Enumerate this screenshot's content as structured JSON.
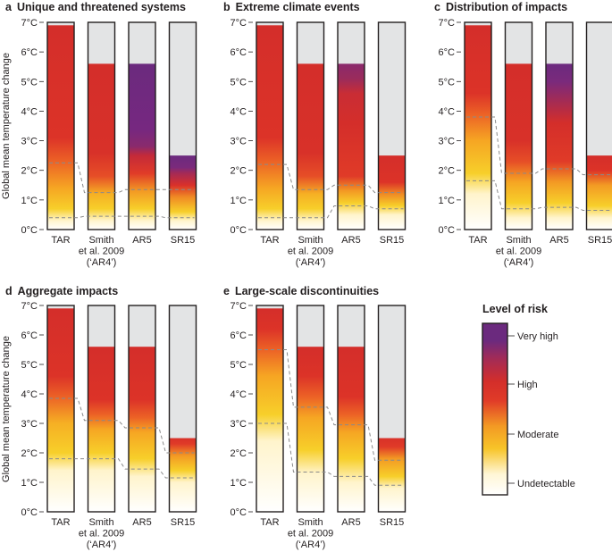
{
  "chart_data": {
    "type": "bar",
    "ylabel": "Global mean temperature change",
    "ylim": [
      0,
      7
    ],
    "y_ticks": [
      "0°C",
      "1°C",
      "2°C",
      "3°C",
      "4°C",
      "5°C",
      "6°C",
      "7°C"
    ],
    "categories": [
      {
        "id": "TAR",
        "lines": [
          "TAR"
        ]
      },
      {
        "id": "Smith et al. 2009 ('AR4')",
        "lines": [
          "Smith",
          "et al. 2009",
          "(‘AR4’)"
        ]
      },
      {
        "id": "AR5",
        "lines": [
          "AR5"
        ]
      },
      {
        "id": "SR15",
        "lines": [
          "SR15"
        ]
      }
    ],
    "legend": {
      "title": "Level of risk",
      "levels": [
        "Very high",
        "High",
        "Moderate",
        "Undetectable"
      ],
      "colors": [
        "#6b2a7e",
        "#d9302a",
        "#f7c428",
        "#ffffff"
      ]
    },
    "panels": [
      {
        "letter": "a",
        "title": "Unique and threatened systems",
        "bars": [
          {
            "top": 6.9,
            "stops": [
              [
                0,
                "#ffffff"
              ],
              [
                0.3,
                "#fff4cc"
              ],
              [
                0.7,
                "#f7cf2a"
              ],
              [
                1.4,
                "#f6a623"
              ],
              [
                2.3,
                "#ec6226"
              ],
              [
                3.1,
                "#dc3328"
              ],
              [
                6.9,
                "#d42e2a"
              ]
            ]
          },
          {
            "top": 5.6,
            "stops": [
              [
                0,
                "#ffffff"
              ],
              [
                0.3,
                "#fff4cc"
              ],
              [
                0.7,
                "#f7cf2a"
              ],
              [
                1.2,
                "#f6b024"
              ],
              [
                1.8,
                "#e64e27"
              ],
              [
                2.6,
                "#d83129"
              ],
              [
                5.6,
                "#d42e2a"
              ]
            ]
          },
          {
            "top": 5.6,
            "stops": [
              [
                0,
                "#ffffff"
              ],
              [
                0.3,
                "#fff4cc"
              ],
              [
                0.7,
                "#f7cf2a"
              ],
              [
                1.3,
                "#f39a24"
              ],
              [
                1.9,
                "#e03b28"
              ],
              [
                2.5,
                "#c42a39"
              ],
              [
                2.8,
                "#8a2a6c"
              ],
              [
                3.4,
                "#762880"
              ],
              [
                5.6,
                "#6b2a7e"
              ]
            ]
          },
          {
            "top": 2.5,
            "stops": [
              [
                0,
                "#ffffff"
              ],
              [
                0.3,
                "#fff4cc"
              ],
              [
                0.6,
                "#f7cf2a"
              ],
              [
                1.1,
                "#f08a24"
              ],
              [
                1.5,
                "#d9302a"
              ],
              [
                1.9,
                "#a52a55"
              ],
              [
                2.1,
                "#7a2a7c"
              ],
              [
                2.5,
                "#6b2a7e"
              ]
            ]
          }
        ],
        "lines": [
          {
            "values": [
              2.25,
              1.25,
              1.35,
              1.35
            ]
          },
          {
            "values": [
              0.4,
              0.45,
              0.45,
              0.4
            ]
          }
        ]
      },
      {
        "letter": "b",
        "title": "Extreme climate events",
        "bars": [
          {
            "top": 6.9,
            "stops": [
              [
                0,
                "#ffffff"
              ],
              [
                0.3,
                "#fff4cc"
              ],
              [
                0.7,
                "#f7cf2a"
              ],
              [
                1.4,
                "#f6a623"
              ],
              [
                2.3,
                "#ec6226"
              ],
              [
                3.1,
                "#dc3328"
              ],
              [
                6.9,
                "#d42e2a"
              ]
            ]
          },
          {
            "top": 5.6,
            "stops": [
              [
                0,
                "#ffffff"
              ],
              [
                0.3,
                "#fff4cc"
              ],
              [
                0.7,
                "#f7cf2a"
              ],
              [
                1.2,
                "#f6b024"
              ],
              [
                1.8,
                "#e64e27"
              ],
              [
                2.6,
                "#d83129"
              ],
              [
                5.6,
                "#d42e2a"
              ]
            ]
          },
          {
            "top": 5.6,
            "stops": [
              [
                0,
                "#ffffff"
              ],
              [
                0.5,
                "#fff4cc"
              ],
              [
                0.9,
                "#f7cf2a"
              ],
              [
                1.3,
                "#f39a24"
              ],
              [
                1.8,
                "#e03b28"
              ],
              [
                3.6,
                "#d42e2a"
              ],
              [
                4.6,
                "#c92d35"
              ],
              [
                5.1,
                "#9a2b5c"
              ],
              [
                5.6,
                "#8a2a6c"
              ]
            ]
          },
          {
            "top": 2.5,
            "stops": [
              [
                0,
                "#ffffff"
              ],
              [
                0.5,
                "#fff4cc"
              ],
              [
                0.8,
                "#f7cf2a"
              ],
              [
                1.2,
                "#f08a24"
              ],
              [
                1.6,
                "#dc3328"
              ],
              [
                2.5,
                "#d42e2a"
              ]
            ]
          }
        ],
        "lines": [
          {
            "values": [
              2.2,
              1.35,
              1.5,
              1.25
            ]
          },
          {
            "values": [
              0.4,
              0.4,
              0.8,
              0.7
            ]
          }
        ]
      },
      {
        "letter": "c",
        "title": "Distribution of impacts",
        "bars": [
          {
            "top": 6.9,
            "stops": [
              [
                0,
                "#ffffff"
              ],
              [
                1.2,
                "#fff4cc"
              ],
              [
                1.9,
                "#f7cf2a"
              ],
              [
                3.0,
                "#f6a623"
              ],
              [
                3.9,
                "#ec6226"
              ],
              [
                4.6,
                "#dc3328"
              ],
              [
                6.9,
                "#d42e2a"
              ]
            ]
          },
          {
            "top": 5.6,
            "stops": [
              [
                0,
                "#ffffff"
              ],
              [
                0.4,
                "#fff4cc"
              ],
              [
                0.9,
                "#f7cf2a"
              ],
              [
                1.6,
                "#f6a623"
              ],
              [
                2.3,
                "#e64e27"
              ],
              [
                3.0,
                "#d83129"
              ],
              [
                5.6,
                "#d42e2a"
              ]
            ]
          },
          {
            "top": 5.6,
            "stops": [
              [
                0,
                "#ffffff"
              ],
              [
                0.4,
                "#fff4cc"
              ],
              [
                0.9,
                "#f7cf2a"
              ],
              [
                1.6,
                "#f39a24"
              ],
              [
                2.3,
                "#e03b28"
              ],
              [
                3.6,
                "#d42e2a"
              ],
              [
                4.4,
                "#a02b58"
              ],
              [
                5.0,
                "#7a2a7c"
              ],
              [
                5.6,
                "#6b2a7e"
              ]
            ]
          },
          {
            "top": 2.5,
            "stops": [
              [
                0,
                "#ffffff"
              ],
              [
                0.4,
                "#fff4cc"
              ],
              [
                0.8,
                "#f7cf2a"
              ],
              [
                1.5,
                "#f39a24"
              ],
              [
                2.0,
                "#dc3328"
              ],
              [
                2.5,
                "#d42e2a"
              ]
            ]
          }
        ],
        "lines": [
          {
            "values": [
              3.8,
              1.9,
              2.05,
              1.85
            ]
          },
          {
            "values": [
              1.65,
              0.7,
              0.75,
              0.65
            ]
          }
        ]
      },
      {
        "letter": "d",
        "title": "Aggregate impacts",
        "bars": [
          {
            "top": 6.9,
            "stops": [
              [
                0,
                "#ffffff"
              ],
              [
                1.4,
                "#fff4cc"
              ],
              [
                2.0,
                "#f7cf2a"
              ],
              [
                3.0,
                "#f6b024"
              ],
              [
                3.9,
                "#ec6226"
              ],
              [
                4.6,
                "#dc3328"
              ],
              [
                6.9,
                "#d42e2a"
              ]
            ]
          },
          {
            "top": 5.6,
            "stops": [
              [
                0,
                "#ffffff"
              ],
              [
                1.4,
                "#fff4cc"
              ],
              [
                2.0,
                "#f7cf2a"
              ],
              [
                2.8,
                "#f6a623"
              ],
              [
                3.3,
                "#ec6226"
              ],
              [
                3.8,
                "#dc3328"
              ],
              [
                5.6,
                "#d42e2a"
              ]
            ]
          },
          {
            "top": 5.6,
            "stops": [
              [
                0,
                "#ffffff"
              ],
              [
                1.2,
                "#fff4cc"
              ],
              [
                1.8,
                "#f7cf2a"
              ],
              [
                2.7,
                "#f6a623"
              ],
              [
                3.2,
                "#ec6226"
              ],
              [
                3.8,
                "#dc3328"
              ],
              [
                5.6,
                "#d42e2a"
              ]
            ]
          },
          {
            "top": 2.5,
            "stops": [
              [
                0,
                "#ffffff"
              ],
              [
                1.0,
                "#fff4cc"
              ],
              [
                1.4,
                "#f7cf2a"
              ],
              [
                1.9,
                "#f39a24"
              ],
              [
                2.3,
                "#e03b28"
              ],
              [
                2.5,
                "#d83129"
              ]
            ]
          }
        ],
        "lines": [
          {
            "values": [
              3.85,
              3.1,
              2.85,
              2.0
            ]
          },
          {
            "values": [
              1.8,
              1.8,
              1.45,
              1.15
            ]
          }
        ]
      },
      {
        "letter": "e",
        "title": "Large-scale discontinuities",
        "bars": [
          {
            "top": 6.9,
            "stops": [
              [
                0,
                "#ffffff"
              ],
              [
                2.4,
                "#fff4cc"
              ],
              [
                3.3,
                "#f7cf2a"
              ],
              [
                4.6,
                "#f6a623"
              ],
              [
                5.5,
                "#ec6226"
              ],
              [
                6.2,
                "#dc3328"
              ],
              [
                6.9,
                "#d42e2a"
              ]
            ]
          },
          {
            "top": 5.6,
            "stops": [
              [
                0,
                "#ffffff"
              ],
              [
                1.3,
                "#fff4cc"
              ],
              [
                2.1,
                "#f7cf2a"
              ],
              [
                3.2,
                "#f6a623"
              ],
              [
                3.9,
                "#ec6226"
              ],
              [
                4.6,
                "#dc3328"
              ],
              [
                5.6,
                "#d42e2a"
              ]
            ]
          },
          {
            "top": 5.6,
            "stops": [
              [
                0,
                "#ffffff"
              ],
              [
                1.0,
                "#fff4cc"
              ],
              [
                1.8,
                "#f7cf2a"
              ],
              [
                2.7,
                "#f6a623"
              ],
              [
                3.3,
                "#ec6226"
              ],
              [
                3.9,
                "#dc3328"
              ],
              [
                5.6,
                "#d42e2a"
              ]
            ]
          },
          {
            "top": 2.5,
            "stops": [
              [
                0,
                "#ffffff"
              ],
              [
                0.8,
                "#fff4cc"
              ],
              [
                1.2,
                "#f7cf2a"
              ],
              [
                1.8,
                "#f39a24"
              ],
              [
                2.2,
                "#e03b28"
              ],
              [
                2.5,
                "#d83129"
              ]
            ]
          }
        ],
        "lines": [
          {
            "values": [
              5.5,
              3.55,
              2.95,
              1.75
            ]
          },
          {
            "values": [
              3.0,
              1.35,
              1.2,
              0.9
            ]
          }
        ]
      }
    ]
  }
}
